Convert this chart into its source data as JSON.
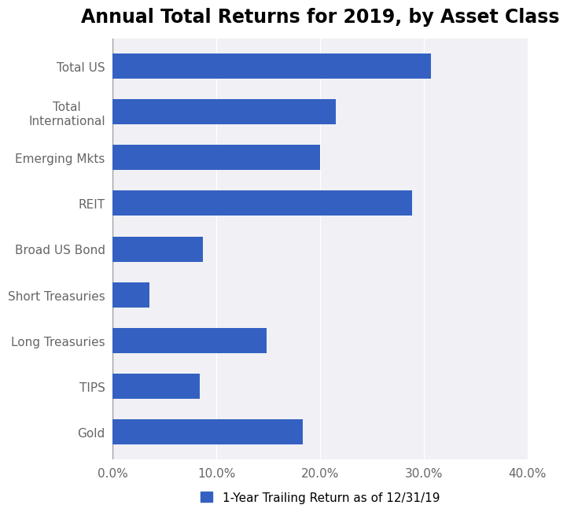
{
  "title": "Annual Total Returns for 2019, by Asset Class",
  "categories": [
    "Total US",
    "Total\nInternational",
    "Emerging Mkts",
    "REIT",
    "Broad US Bond",
    "Short Treasuries",
    "Long Treasuries",
    "TIPS",
    "Gold"
  ],
  "values": [
    30.7,
    21.5,
    20.0,
    28.9,
    8.7,
    3.5,
    14.8,
    8.4,
    18.3
  ],
  "bar_color": "#3461C1",
  "plot_bg_color": "#f0f0f5",
  "fig_bg_color": "#ffffff",
  "xlim": [
    0,
    40
  ],
  "xtick_vals": [
    0,
    10,
    20,
    30,
    40
  ],
  "xtick_labels": [
    "0.0%",
    "10.0%",
    "20.0%",
    "30.0%",
    "40.0%"
  ],
  "legend_label": "1-Year Trailing Return as of 12/31/19",
  "title_fontsize": 17,
  "tick_fontsize": 11,
  "label_fontsize": 11,
  "legend_fontsize": 11,
  "bar_height": 0.55
}
